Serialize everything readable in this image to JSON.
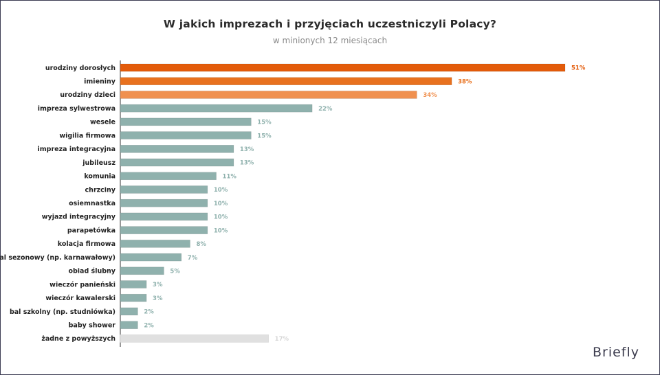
{
  "header": {
    "title": "W jakich imprezach i przyjęciach uczestniczyli Polacy?",
    "subtitle": "w minionych 12 miesiącach"
  },
  "brand": {
    "logo_text": "Briefly"
  },
  "colors": {
    "top1": "#e35b0a",
    "top2": "#e8711f",
    "top3": "#f0904f",
    "regular": "#8fb1ad",
    "regular_label": "#8fb1ad",
    "none": "#e0e0e0",
    "none_label": "#d6d6d6"
  },
  "chart_data": {
    "type": "bar",
    "orientation": "horizontal",
    "categories": [
      "urodziny dorosłych",
      "imieniny",
      "urodziny dzieci",
      "impreza sylwestrowa",
      "wesele",
      "wigilia firmowa",
      "impreza integracyjna",
      "jubileusz",
      "komunia",
      "chrzciny",
      "osiemnastka",
      "wyjazd integracyjny",
      "parapetówka",
      "kolacja firmowa",
      "bal sezonowy (np. karnawałowy)",
      "obiad ślubny",
      "wieczór panieński",
      "wieczór kawalerski",
      "bal szkolny (np. studniówka)",
      "baby shower",
      "żadne z powyższych"
    ],
    "values": [
      51,
      38,
      34,
      22,
      15,
      15,
      13,
      13,
      11,
      10,
      10,
      10,
      10,
      8,
      7,
      5,
      3,
      3,
      2,
      2,
      17
    ],
    "value_labels": [
      "51%",
      "38%",
      "34%",
      "22%",
      "15%",
      "15%",
      "13%",
      "13%",
      "11%",
      "10%",
      "10%",
      "10%",
      "10%",
      "8%",
      "7%",
      "5%",
      "3%",
      "3%",
      "2%",
      "2%",
      "17%"
    ],
    "color_keys": [
      "top1",
      "top2",
      "top3",
      "regular",
      "regular",
      "regular",
      "regular",
      "regular",
      "regular",
      "regular",
      "regular",
      "regular",
      "regular",
      "regular",
      "regular",
      "regular",
      "regular",
      "regular",
      "regular",
      "regular",
      "none"
    ],
    "xlim": [
      0,
      51
    ],
    "grid": false,
    "legend": "none"
  }
}
